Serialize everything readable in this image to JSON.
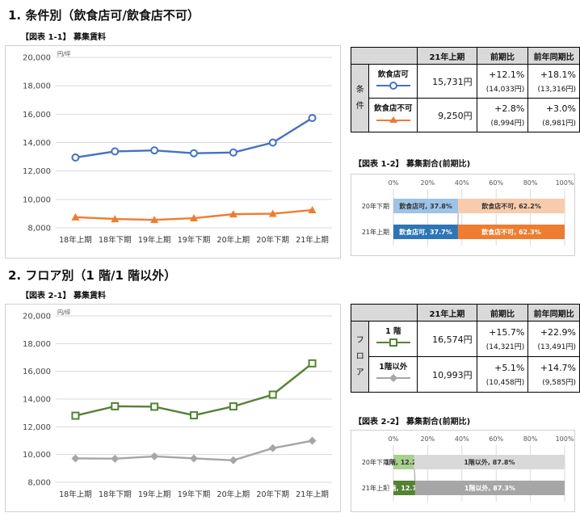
{
  "section1": {
    "title": "1. 条件別（飲食店可/飲食店不可）",
    "fig1_label": "【図表 1-1】 募集賃料",
    "fig2_label": "【図表 1-2】 募集割合(前期比)",
    "table": {
      "headers": [
        "21年上期",
        "前期比",
        "前年同期比"
      ],
      "side_label": [
        "条",
        "件"
      ],
      "rows": [
        {
          "name": "飲食店可",
          "value": "15,731円",
          "qoq": "+12.1%",
          "qoq_base": "(14,033円)",
          "yoy": "+18.1%",
          "yoy_base": "(13,316円)"
        },
        {
          "name": "飲食店不可",
          "value": "9,250円",
          "qoq": "+2.8%",
          "qoq_base": "(8,994円)",
          "yoy": "+3.0%",
          "yoy_base": "(8,981円)"
        }
      ]
    }
  },
  "section2": {
    "title": "2. フロア別（1 階/1 階以外）",
    "fig1_label": "【図表 2-1】 募集賃料",
    "fig2_label": "【図表 2-2】 募集割合(前期比)",
    "table": {
      "headers": [
        "21年上期",
        "前期比",
        "前年同期比"
      ],
      "side_label": [
        "フ",
        "ロ",
        "ア"
      ],
      "rows": [
        {
          "name": "1 階",
          "value": "16,574円",
          "qoq": "+15.7%",
          "qoq_base": "(14,321円)",
          "yoy": "+22.9%",
          "yoy_base": "(13,491円)"
        },
        {
          "name": "1階以外",
          "value": "10,993円",
          "qoq": "+5.1%",
          "qoq_base": "(10,458円)",
          "yoy": "+14.7%",
          "yoy_base": "(9,585円)"
        }
      ]
    }
  },
  "chart_data": [
    {
      "type": "line",
      "unit_label": "円/坪",
      "categories": [
        "18年上期",
        "18年下期",
        "19年上期",
        "19年下期",
        "20年上期",
        "20年下期",
        "21年上期"
      ],
      "ylim": [
        8000,
        20000
      ],
      "yticks": [
        "8,000",
        "10,000",
        "12,000",
        "14,000",
        "16,000",
        "18,000",
        "20,000"
      ],
      "grid": true,
      "series": [
        {
          "name": "飲食店可",
          "color": "#4472c4",
          "marker": "circle",
          "values": [
            12950,
            13380,
            13450,
            13250,
            13300,
            14000,
            15731
          ]
        },
        {
          "name": "飲食店不可",
          "color": "#ed7d31",
          "marker": "triangle",
          "values": [
            8750,
            8620,
            8560,
            8680,
            8960,
            8994,
            9250
          ]
        }
      ]
    },
    {
      "type": "bar",
      "stacked": true,
      "orientation": "horizontal",
      "xticks": [
        "0%",
        "20%",
        "40%",
        "60%",
        "80%",
        "100%"
      ],
      "categories": [
        "20年下期",
        "21年上期"
      ],
      "series": [
        {
          "name": "飲食店可",
          "values": [
            37.8,
            37.7
          ],
          "labels": [
            "飲食店可, 37.8%",
            "飲食店可, 37.7%"
          ],
          "colors": [
            "#9dc3e6",
            "#2e75b6"
          ]
        },
        {
          "name": "飲食店不可",
          "values": [
            62.2,
            62.3
          ],
          "labels": [
            "飲食店不可, 62.2%",
            "飲食店不可, 62.3%"
          ],
          "colors": [
            "#f8cbad",
            "#ed7d31"
          ]
        }
      ]
    },
    {
      "type": "line",
      "unit_label": "円/坪",
      "categories": [
        "18年上期",
        "18年下期",
        "19年上期",
        "19年下期",
        "20年上期",
        "20年下期",
        "21年上期"
      ],
      "ylim": [
        8000,
        20000
      ],
      "yticks": [
        "8,000",
        "10,000",
        "12,000",
        "14,000",
        "16,000",
        "18,000",
        "20,000"
      ],
      "grid": true,
      "series": [
        {
          "name": "1 階",
          "color": "#548235",
          "marker": "square",
          "values": [
            12800,
            13480,
            13450,
            12830,
            13470,
            14321,
            16574
          ]
        },
        {
          "name": "1階以外",
          "color": "#a6a6a6",
          "marker": "diamond",
          "values": [
            9720,
            9700,
            9870,
            9720,
            9585,
            10458,
            10993
          ]
        }
      ]
    },
    {
      "type": "bar",
      "stacked": true,
      "orientation": "horizontal",
      "xticks": [
        "0%",
        "20%",
        "40%",
        "60%",
        "80%",
        "100%"
      ],
      "categories": [
        "20年下期",
        "21年上期"
      ],
      "series": [
        {
          "name": "1階",
          "values": [
            12.2,
            12.7
          ],
          "labels": [
            "1階, 12.2%",
            "1階, 12.7%"
          ],
          "colors": [
            "#a9d08e",
            "#548235"
          ]
        },
        {
          "name": "1階以外",
          "values": [
            87.8,
            87.3
          ],
          "labels": [
            "1階以外, 87.8%",
            "1階以外, 87.3%"
          ],
          "colors": [
            "#d9d9d9",
            "#a6a6a6"
          ]
        }
      ]
    }
  ]
}
